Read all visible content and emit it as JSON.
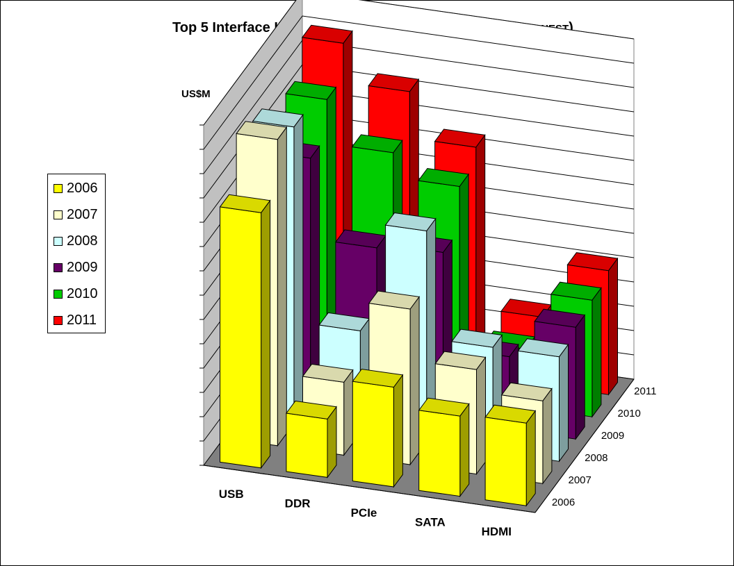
{
  "chart_data": {
    "type": "bar",
    "title": "Top 5 Interface IP:  License revenues 2006-2011 (",
    "title_source": "source: IPNEST",
    "title_close": ")",
    "ylabel": "US$M",
    "ylim": [
      0,
      14
    ],
    "categories": [
      "USB",
      "DDR",
      "PCIe",
      "SATA",
      "HDMI"
    ],
    "series": [
      {
        "name": "2006",
        "color": "#ffff00",
        "values": [
          10.5,
          2.4,
          4.1,
          3.3,
          3.4
        ]
      },
      {
        "name": "2007",
        "color": "#ffffcc",
        "values": [
          12.6,
          3.0,
          6.4,
          4.3,
          3.4
        ]
      },
      {
        "name": "2008",
        "color": "#ccffff",
        "values": [
          12.2,
          4.2,
          8.7,
          4.3,
          4.3
        ]
      },
      {
        "name": "2009",
        "color": "#660066",
        "values": [
          10.0,
          6.7,
          6.9,
          3.0,
          4.6
        ]
      },
      {
        "name": "2010",
        "color": "#00cc00",
        "values": [
          11.5,
          9.7,
          8.7,
          2.4,
          4.8
        ]
      },
      {
        "name": "2011",
        "color": "#ff0000",
        "values": [
          12.9,
          11.3,
          9.4,
          2.8,
          5.1
        ]
      }
    ],
    "depth_labels": [
      "2006",
      "2007",
      "2008",
      "2009",
      "2010",
      "2011"
    ],
    "legend_position": "left",
    "grid": true
  }
}
